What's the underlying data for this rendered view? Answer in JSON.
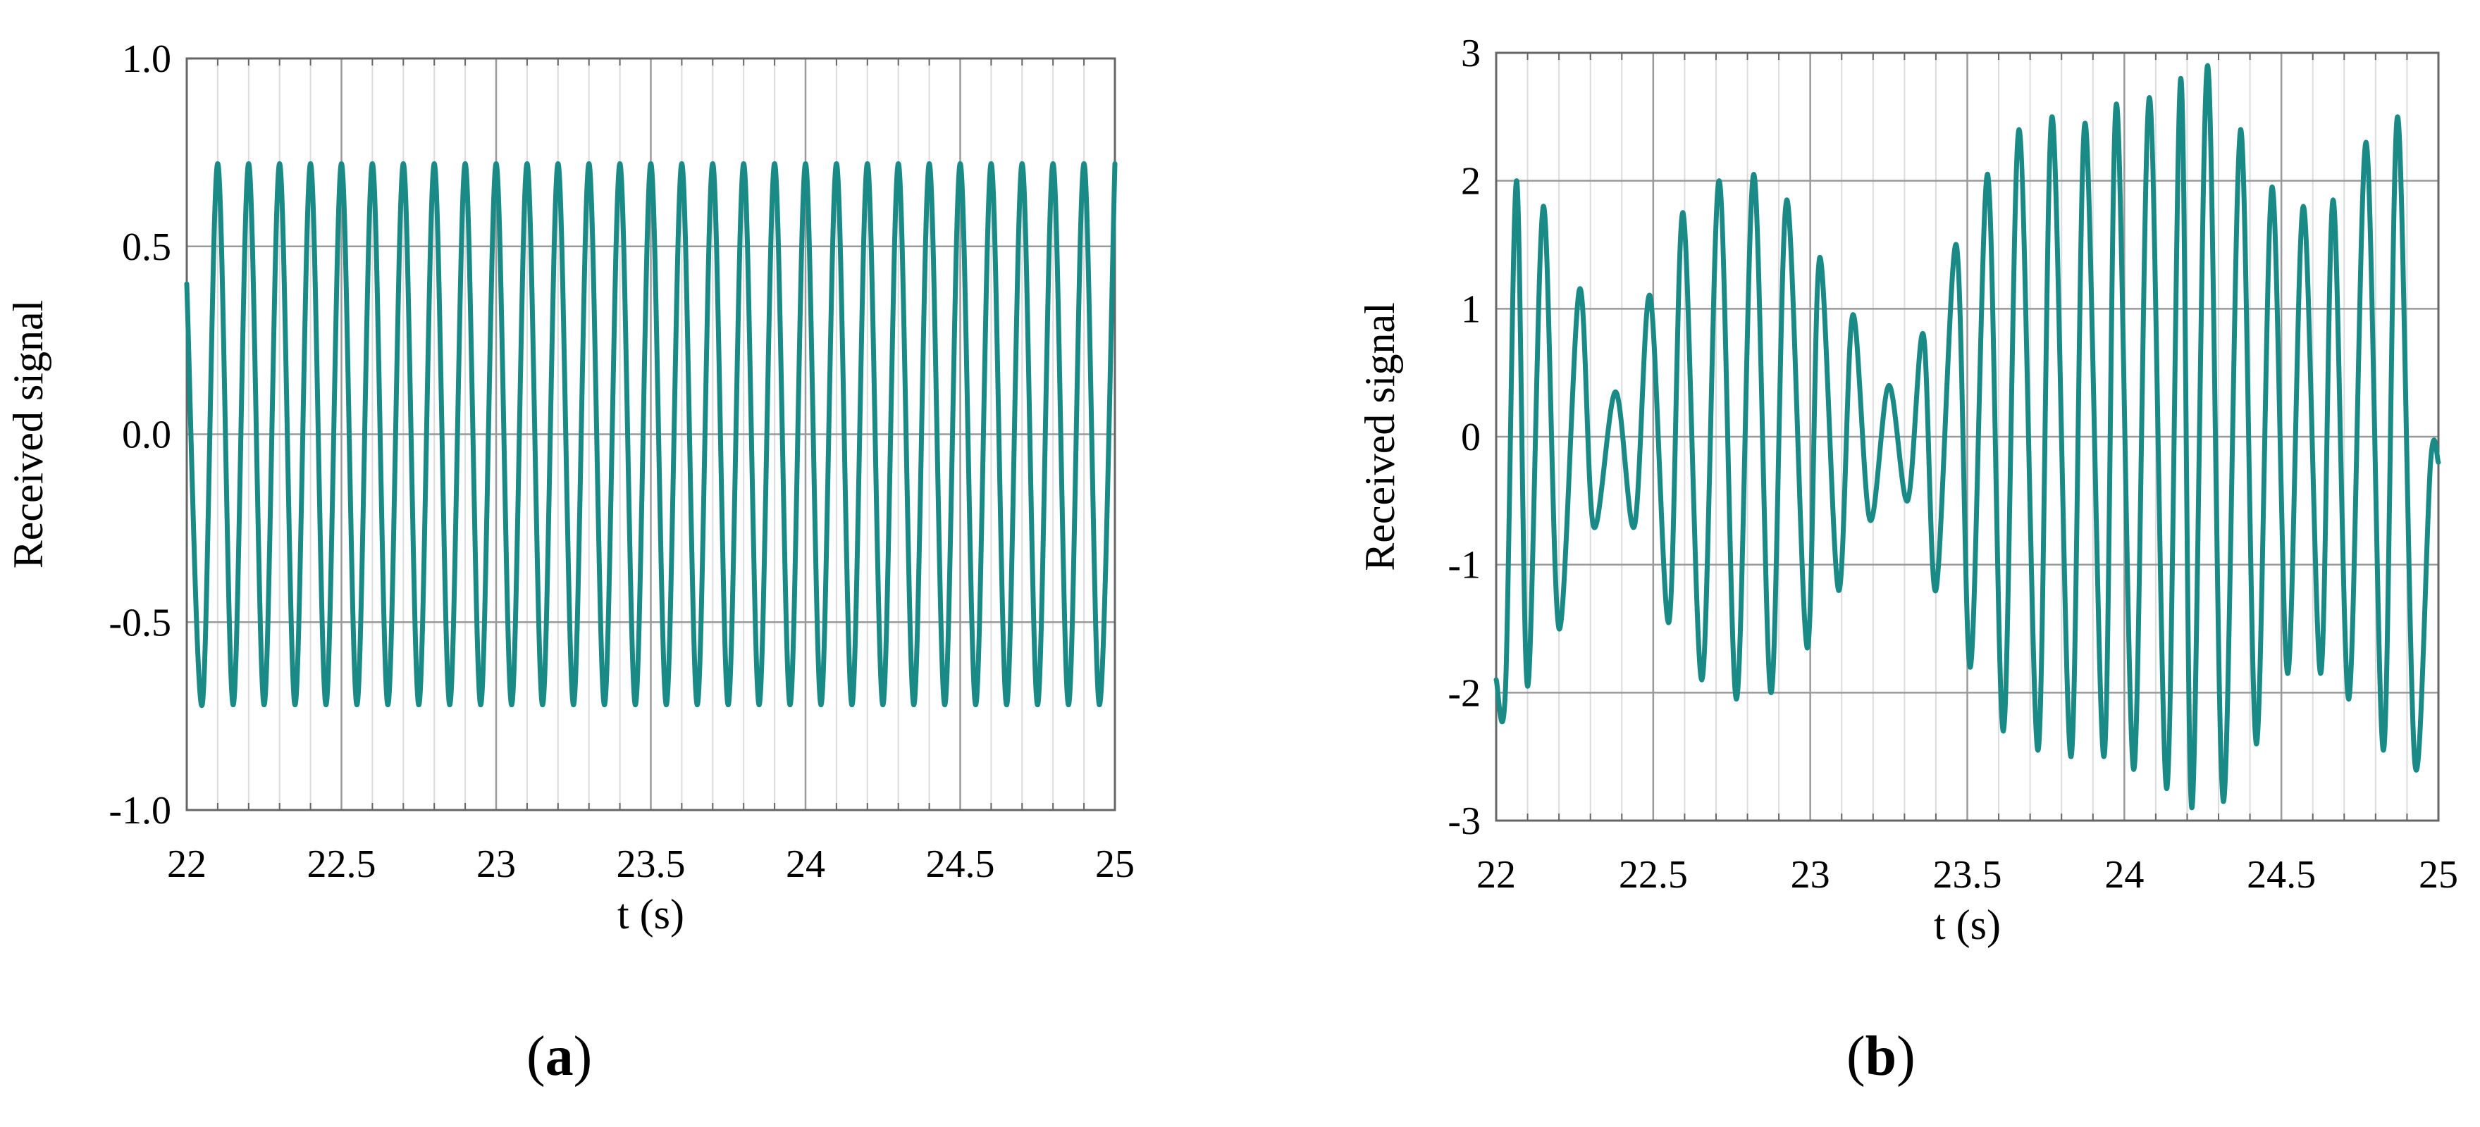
{
  "colors": {
    "line": "#1a8a86",
    "axis": "#666666",
    "major_grid": "#9a9a9a",
    "minor_grid": "#dcdcdc",
    "text": "#000000"
  },
  "panels": [
    {
      "label": "a"
    },
    {
      "label": "b"
    }
  ],
  "chart_data": [
    {
      "type": "line",
      "xlabel": "t (s)",
      "ylabel": "Received signal",
      "xlim": [
        22,
        25
      ],
      "ylim": [
        -1.0,
        1.0
      ],
      "xticks": [
        "22",
        "22.5",
        "23",
        "23.5",
        "24",
        "24.5",
        "25"
      ],
      "yticks": [
        "-1.0",
        "-0.5",
        "0.0",
        "0.5",
        "1.0"
      ],
      "x_minor_step": 0.1,
      "grid": true,
      "series": [
        {
          "x": [
            22.0,
            22.05,
            22.1,
            22.15,
            22.2,
            22.25,
            22.3,
            22.35,
            22.4,
            22.45,
            22.5,
            22.55,
            22.6,
            22.65,
            22.7,
            22.75,
            22.8,
            22.85,
            22.9,
            22.95,
            23.0,
            23.05,
            23.1,
            23.15,
            23.2,
            23.25,
            23.3,
            23.35,
            23.4,
            23.45,
            23.5,
            23.55,
            23.6,
            23.65,
            23.7,
            23.75,
            23.8,
            23.85,
            23.9,
            23.95,
            24.0,
            24.05,
            24.1,
            24.15,
            24.2,
            24.25,
            24.3,
            24.35,
            24.4,
            24.45,
            24.5,
            24.55,
            24.6,
            24.65,
            24.7,
            24.75,
            24.8,
            24.85,
            24.9,
            24.95,
            25.0
          ],
          "y": [
            0.4,
            -0.72,
            0.72,
            -0.72,
            0.72,
            -0.72,
            0.72,
            -0.72,
            0.72,
            -0.72,
            0.72,
            -0.72,
            0.72,
            -0.72,
            0.72,
            -0.72,
            0.72,
            -0.72,
            0.72,
            -0.72,
            0.72,
            -0.72,
            0.72,
            -0.72,
            0.72,
            -0.72,
            0.72,
            -0.72,
            0.72,
            -0.72,
            0.72,
            -0.72,
            0.72,
            -0.72,
            0.72,
            -0.72,
            0.72,
            -0.72,
            0.72,
            -0.72,
            0.72,
            -0.72,
            0.72,
            -0.72,
            0.72,
            -0.72,
            0.72,
            -0.72,
            0.72,
            -0.72,
            0.72,
            -0.72,
            0.72,
            -0.72,
            0.72,
            -0.72,
            0.72,
            -0.72,
            0.72,
            -0.72,
            0.72
          ]
        }
      ]
    },
    {
      "type": "line",
      "xlabel": "t (s)",
      "ylabel": "Received signal",
      "xlim": [
        22,
        25
      ],
      "ylim": [
        -3,
        3
      ],
      "xticks": [
        "22",
        "22.5",
        "23",
        "23.5",
        "24",
        "24.5",
        "25"
      ],
      "yticks": [
        "-3",
        "-2",
        "-1",
        "0",
        "1",
        "2",
        "3"
      ],
      "x_minor_step": 0.1,
      "grid": true,
      "series": [
        {
          "x": [
            22.0,
            22.03,
            22.065,
            22.1,
            22.15,
            22.2,
            22.265,
            22.31,
            22.38,
            22.44,
            22.49,
            22.55,
            22.595,
            22.655,
            22.71,
            22.765,
            22.82,
            22.875,
            22.925,
            22.99,
            23.03,
            23.09,
            23.135,
            23.19,
            23.25,
            23.31,
            23.36,
            23.4,
            23.465,
            23.51,
            23.565,
            23.615,
            23.665,
            23.725,
            23.77,
            23.83,
            23.875,
            23.935,
            23.975,
            24.03,
            24.08,
            24.135,
            24.18,
            24.215,
            24.265,
            24.315,
            24.37,
            24.42,
            24.47,
            24.52,
            24.57,
            24.625,
            24.665,
            24.715,
            24.77,
            24.825,
            24.87,
            24.925,
            24.975,
            25.0
          ],
          "y": [
            -1.9,
            -1.95,
            2.0,
            -1.95,
            1.8,
            -1.5,
            1.15,
            -0.7,
            0.35,
            -0.7,
            1.1,
            -1.45,
            1.75,
            -1.9,
            2.0,
            -2.05,
            2.05,
            -2.0,
            1.85,
            -1.65,
            1.4,
            -1.2,
            0.95,
            -0.65,
            0.4,
            -0.5,
            0.8,
            -1.2,
            1.5,
            -1.8,
            2.05,
            -2.3,
            2.4,
            -2.45,
            2.5,
            -2.5,
            2.45,
            -2.5,
            2.6,
            -2.6,
            2.65,
            -2.75,
            2.8,
            -2.9,
            2.9,
            -2.85,
            2.4,
            -2.4,
            1.95,
            -1.85,
            1.8,
            -1.85,
            1.85,
            -2.05,
            2.3,
            -2.45,
            2.5,
            -2.55,
            -0.2,
            -0.2
          ]
        }
      ]
    }
  ]
}
